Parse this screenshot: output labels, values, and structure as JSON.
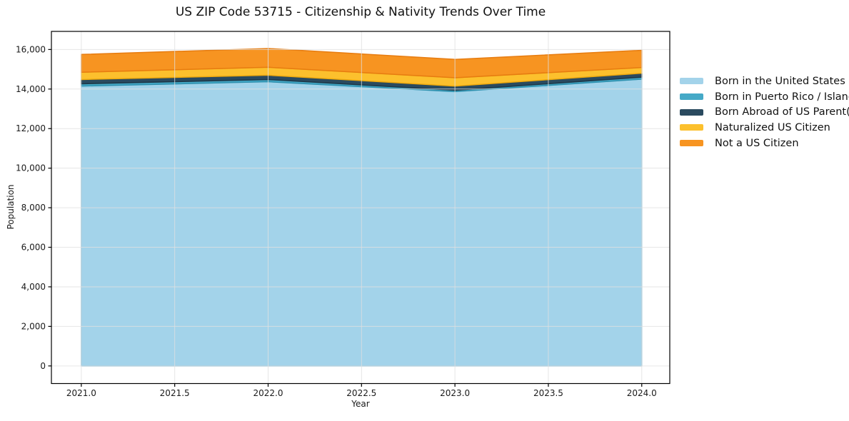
{
  "page": {
    "background": "#ffffff"
  },
  "chart_data": {
    "type": "area",
    "stacked": true,
    "title": "US ZIP Code 53715 - Citizenship & Nativity Trends Over Time",
    "xlabel": "Year",
    "ylabel": "Population",
    "x": [
      2021,
      2022,
      2023,
      2024
    ],
    "series": [
      {
        "name": "Born in the United States",
        "color": "#A3D3EA",
        "edge_color": "#82BFDC",
        "values": [
          14150,
          14370,
          13870,
          14500
        ]
      },
      {
        "name": "Born in Puerto Rico / Islands",
        "color": "#45A9C7",
        "edge_color": "#2F91AF",
        "values": [
          115,
          110,
          70,
          100
        ]
      },
      {
        "name": "Born Abroad of US Parent(s)",
        "color": "#2A4A5F",
        "edge_color": "#1D3747",
        "values": [
          215,
          220,
          210,
          200
        ]
      },
      {
        "name": "Naturalized US Citizen",
        "color": "#FCC02D",
        "edge_color": "#EEA90E",
        "values": [
          370,
          400,
          420,
          290
        ]
      },
      {
        "name": "Not a US Citizen",
        "color": "#F79421",
        "edge_color": "#E77C10",
        "values": [
          900,
          950,
          930,
          870
        ]
      }
    ],
    "stack_totals": [
      15750,
      16050,
      15500,
      15960
    ],
    "xlim": [
      2020.84,
      2024.15
    ],
    "ylim": [
      -890,
      16915
    ],
    "xticks": [
      2021.0,
      2021.5,
      2022.0,
      2022.5,
      2023.0,
      2023.5,
      2024.0
    ],
    "xtick_labels": [
      "2021.0",
      "2021.5",
      "2022.0",
      "2022.5",
      "2023.0",
      "2023.5",
      "2024.0"
    ],
    "yticks": [
      0,
      2000,
      4000,
      6000,
      8000,
      10000,
      12000,
      14000,
      16000
    ],
    "ytick_labels": [
      "0",
      "2,000",
      "4,000",
      "6,000",
      "8,000",
      "10,000",
      "12,000",
      "14,000",
      "16,000"
    ],
    "grid": true,
    "grid_color": "#e0e0e0",
    "grid_over_areas": true,
    "axis_color": "#000000",
    "text_color": "#1a1a1a",
    "legend_position": "right-outside"
  }
}
